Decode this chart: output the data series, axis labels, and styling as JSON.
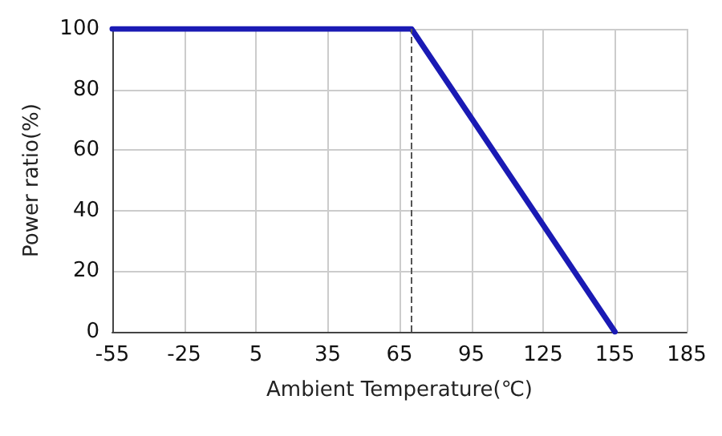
{
  "chart_data": {
    "type": "line",
    "xlabel": "Ambient Temperature(℃)",
    "ylabel": "Power ratio(%)",
    "x": [
      -55,
      70,
      155
    ],
    "series": [
      {
        "color": "#1a1ab4",
        "values": [
          100,
          100,
          0
        ]
      }
    ],
    "xlim": [
      -55,
      185
    ],
    "xticks": [
      -55,
      -25,
      5,
      35,
      65,
      95,
      125,
      155,
      185
    ],
    "ylim": [
      0,
      100
    ],
    "yticks": [
      0,
      20,
      40,
      60,
      80,
      100
    ],
    "grid": true,
    "marker": "none",
    "line_style": "solid",
    "ref_lines": [
      {
        "axis": "x",
        "value": 70,
        "label": null,
        "color": "#555555",
        "line_style": "dashed"
      }
    ]
  }
}
